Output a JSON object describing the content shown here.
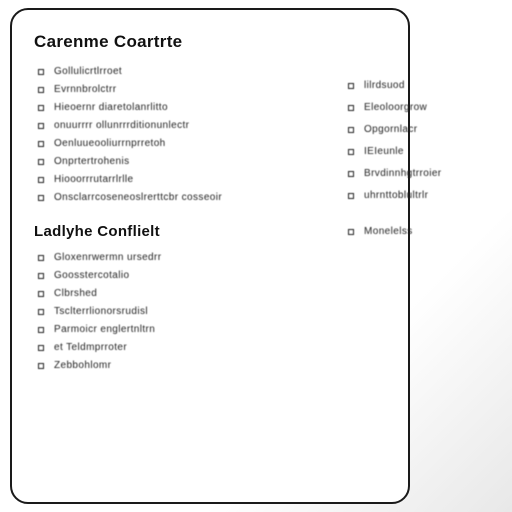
{
  "card": {
    "title": "Carenme Coartrte",
    "section1": {
      "items": [
        "Gollulicrtlrroet",
        "Evrnnbrolctrr",
        "Hieoernr diaretolanrlitto",
        "onuurrrr ollunrrrditionunlectr",
        "Oenluueooliurrnprretoh",
        "Onprtertrohenis",
        "Hiooorrrutarrlrlle",
        "Onsclarrcoseneoslrerttcbr cosseoir"
      ]
    },
    "section2": {
      "title": "Ladlyhe Conflielt",
      "items": [
        "Gloxenrwermn  ursedrr",
        "Goosstercotalio",
        "Clbrshed",
        "Tsclterrlionorsrudisl",
        "Parmoicr englertnltrn",
        "et Teldmprroter",
        "Zebbohlomr"
      ]
    }
  },
  "right": {
    "items": [
      "lilrdsuod",
      "Eleoloorgrow",
      "Opgornlacr",
      "IEIeunle",
      "Brvdinnhgtrroier",
      "uhrnttoblultrlr"
    ],
    "last": "Monelelss"
  }
}
